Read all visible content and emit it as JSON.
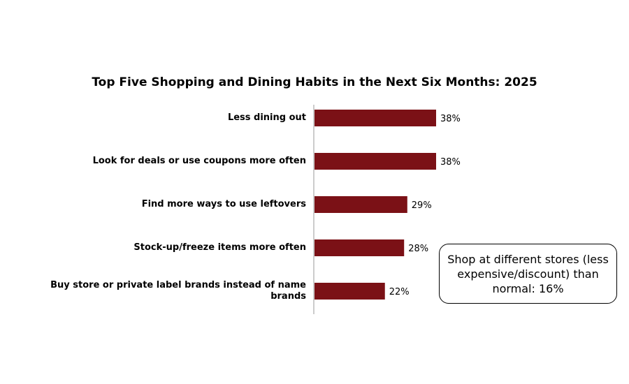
{
  "chart_data": {
    "type": "bar",
    "orientation": "horizontal",
    "title": "Top Five Shopping and Dining Habits in the Next Six Months: 2025",
    "categories": [
      "Less dining out",
      "Look for deals or use coupons more often",
      "Find more ways to use leftovers",
      "Stock-up/freeze items more often",
      "Buy store or private label brands instead of name brands"
    ],
    "values": [
      38,
      38,
      29,
      28,
      22
    ],
    "value_labels": [
      "38%",
      "38%",
      "29%",
      "28%",
      "22%"
    ],
    "xlim": [
      0,
      100
    ],
    "bar_color": "#7B1116",
    "grid": false,
    "legend": "none"
  },
  "callout": {
    "text": "Shop at different stores (less expensive/discount) than normal: 16%"
  }
}
